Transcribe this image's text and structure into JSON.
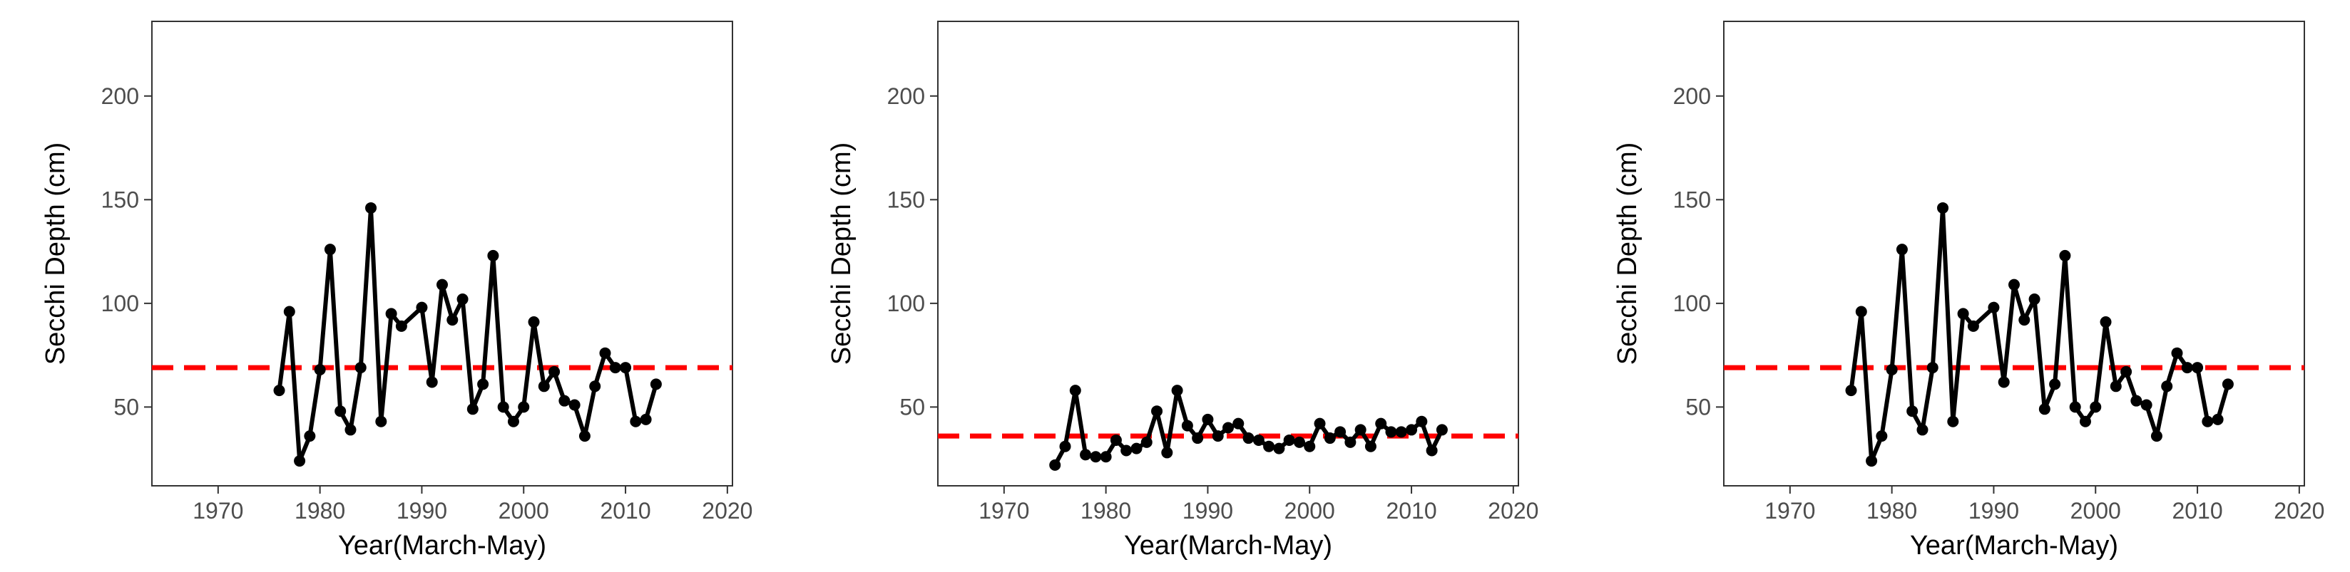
{
  "chart_data": [
    {
      "type": "line",
      "xlabel": "Year(March-May)",
      "ylabel": "Secchi Depth (cm)",
      "xlim": [
        1963.5,
        2020.5
      ],
      "ylim": [
        12,
        236
      ],
      "x_ticks": [
        1970,
        1980,
        1990,
        2000,
        2010,
        2020
      ],
      "y_ticks": [
        50,
        100,
        150,
        200
      ],
      "grid": false,
      "series": [
        {
          "x": [
            1976,
            1977,
            1978,
            1979,
            1980,
            1981,
            1982,
            1983,
            1984,
            1985,
            1986,
            1987,
            1988,
            1990,
            1991,
            1992,
            1993,
            1994,
            1995,
            1996,
            1997,
            1998,
            1999,
            2000,
            2001,
            2002,
            2003,
            2004,
            2005,
            2006,
            2007,
            2008,
            2009,
            2010,
            2011,
            2012,
            2013
          ],
          "y": [
            58,
            96,
            24,
            36,
            68,
            126,
            48,
            39,
            69,
            146,
            43,
            95,
            89,
            98,
            62,
            109,
            92,
            102,
            49,
            61,
            123,
            50,
            43,
            50,
            91,
            60,
            67,
            53,
            51,
            36,
            60,
            76,
            69,
            69,
            43,
            44,
            61
          ],
          "color": "#000000"
        }
      ],
      "reference_line": {
        "y": 69,
        "color": "#ff0000",
        "style": "dashed"
      }
    },
    {
      "type": "line",
      "xlabel": "Year(March-May)",
      "ylabel": "Secchi Depth (cm)",
      "xlim": [
        1963.5,
        2020.5
      ],
      "ylim": [
        12,
        236
      ],
      "x_ticks": [
        1970,
        1980,
        1990,
        2000,
        2010,
        2020
      ],
      "y_ticks": [
        50,
        100,
        150,
        200
      ],
      "grid": false,
      "series": [
        {
          "x": [
            1975,
            1976,
            1977,
            1978,
            1979,
            1980,
            1981,
            1982,
            1983,
            1984,
            1985,
            1986,
            1987,
            1988,
            1989,
            1990,
            1991,
            1992,
            1993,
            1994,
            1995,
            1996,
            1997,
            1998,
            1999,
            2000,
            2001,
            2002,
            2003,
            2004,
            2005,
            2006,
            2007,
            2008,
            2009,
            2010,
            2011,
            2012,
            2013
          ],
          "y": [
            22,
            31,
            58,
            27,
            26,
            26,
            34,
            29,
            30,
            33,
            48,
            28,
            58,
            41,
            35,
            44,
            36,
            40,
            42,
            35,
            34,
            31,
            30,
            34,
            33,
            31,
            42,
            35,
            38,
            33,
            39,
            31,
            42,
            38,
            38,
            39,
            43,
            29,
            39
          ],
          "color": "#000000"
        }
      ],
      "reference_line": {
        "y": 36,
        "color": "#ff0000",
        "style": "dashed"
      }
    },
    {
      "type": "line",
      "xlabel": "Year(March-May)",
      "ylabel": "Secchi Depth (cm)",
      "xlim": [
        1963.5,
        2020.5
      ],
      "ylim": [
        12,
        236
      ],
      "x_ticks": [
        1970,
        1980,
        1990,
        2000,
        2010,
        2020
      ],
      "y_ticks": [
        50,
        100,
        150,
        200
      ],
      "grid": false,
      "series": [
        {
          "x": [
            1976,
            1977,
            1978,
            1979,
            1980,
            1981,
            1982,
            1983,
            1984,
            1985,
            1986,
            1987,
            1988,
            1990,
            1991,
            1992,
            1993,
            1994,
            1995,
            1996,
            1997,
            1998,
            1999,
            2000,
            2001,
            2002,
            2003,
            2004,
            2005,
            2006,
            2007,
            2008,
            2009,
            2010,
            2011,
            2012,
            2013
          ],
          "y": [
            58,
            96,
            24,
            36,
            68,
            126,
            48,
            39,
            69,
            146,
            43,
            95,
            89,
            98,
            62,
            109,
            92,
            102,
            49,
            61,
            123,
            50,
            43,
            50,
            91,
            60,
            67,
            53,
            51,
            36,
            60,
            76,
            69,
            69,
            43,
            44,
            61
          ],
          "color": "#000000"
        }
      ],
      "reference_line": {
        "y": 69,
        "color": "#ff0000",
        "style": "dashed"
      }
    }
  ]
}
